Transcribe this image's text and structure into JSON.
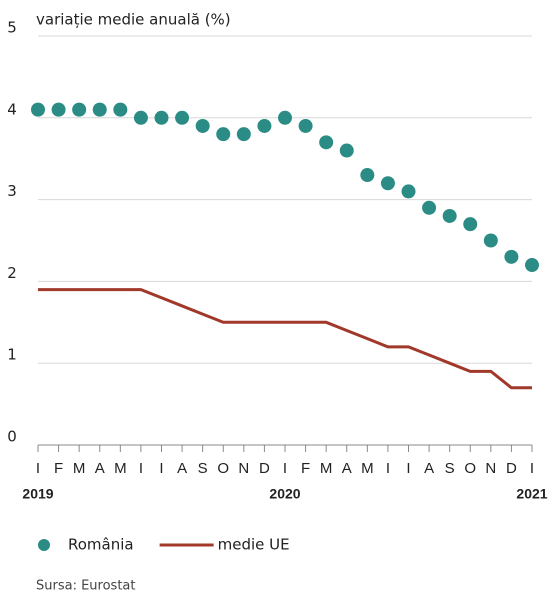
{
  "chart_data": {
    "type": "line",
    "title": "variație medie anuală (%)",
    "categories": [
      "I",
      "F",
      "M",
      "A",
      "M",
      "I",
      "I",
      "A",
      "S",
      "O",
      "N",
      "D",
      "I",
      "F",
      "M",
      "A",
      "M",
      "I",
      "I",
      "A",
      "S",
      "O",
      "N",
      "D",
      "I"
    ],
    "year_labels": [
      "2019",
      null,
      null,
      null,
      null,
      null,
      null,
      null,
      null,
      null,
      null,
      null,
      "2020",
      null,
      null,
      null,
      null,
      null,
      null,
      null,
      null,
      null,
      null,
      null,
      "2021"
    ],
    "series": [
      {
        "name": "România",
        "color": "#2a8c84",
        "style": "dots",
        "values": [
          4.1,
          4.1,
          4.1,
          4.1,
          4.1,
          4.0,
          4.0,
          4.0,
          3.9,
          3.8,
          3.8,
          3.9,
          4.0,
          3.9,
          3.7,
          3.6,
          3.3,
          3.2,
          3.1,
          2.9,
          2.8,
          2.7,
          2.5,
          2.3,
          2.2
        ]
      },
      {
        "name": "medie UE",
        "color": "#a0392a",
        "style": "line",
        "values": [
          1.9,
          1.9,
          1.9,
          1.9,
          1.9,
          1.9,
          1.8,
          1.7,
          1.6,
          1.5,
          1.5,
          1.5,
          1.5,
          1.5,
          1.5,
          1.4,
          1.3,
          1.2,
          1.2,
          1.1,
          1.0,
          0.9,
          0.9,
          0.7,
          0.7
        ]
      }
    ],
    "ylim": [
      0,
      5
    ],
    "yticks": [
      0,
      1,
      2,
      3,
      4,
      5
    ],
    "grid": true,
    "legend": "bottom",
    "source": "Sursa: Eurostat"
  }
}
